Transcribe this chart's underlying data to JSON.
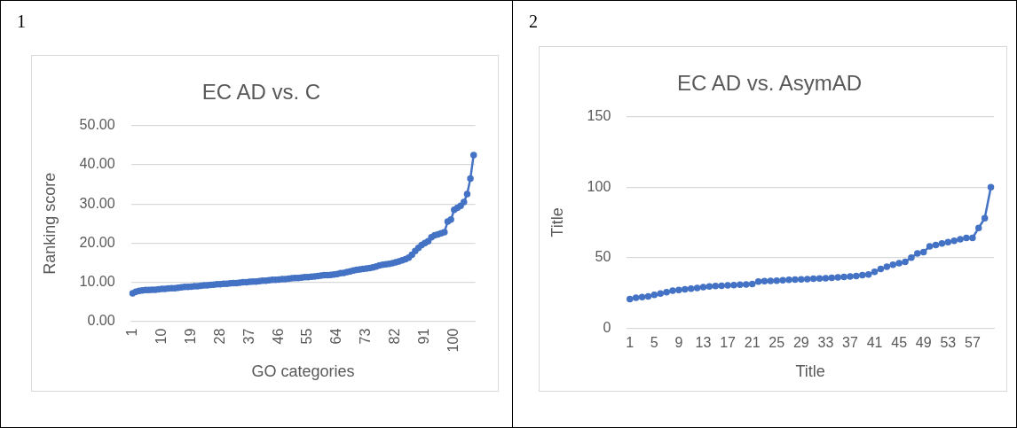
{
  "chart_data": [
    {
      "type": "line",
      "title": "EC AD vs. C",
      "xlabel": "GO categories",
      "ylabel": "Ranking score",
      "annotations": [
        "1"
      ],
      "categories": [
        "1",
        null,
        null,
        null,
        null,
        null,
        null,
        null,
        null,
        "10",
        null,
        null,
        null,
        null,
        null,
        null,
        null,
        null,
        "19",
        null,
        null,
        null,
        null,
        null,
        null,
        null,
        null,
        "28",
        null,
        null,
        null,
        null,
        null,
        null,
        null,
        null,
        "37",
        null,
        null,
        null,
        null,
        null,
        null,
        null,
        null,
        "46",
        null,
        null,
        null,
        null,
        null,
        null,
        null,
        null,
        "55",
        null,
        null,
        null,
        null,
        null,
        null,
        null,
        null,
        "64",
        null,
        null,
        null,
        null,
        null,
        null,
        null,
        null,
        "73",
        null,
        null,
        null,
        null,
        null,
        null,
        null,
        null,
        "82",
        null,
        null,
        null,
        null,
        null,
        null,
        null,
        null,
        "91",
        null,
        null,
        null,
        null,
        null,
        null,
        null,
        null,
        "100",
        null,
        null,
        null,
        null,
        null,
        null
      ],
      "series": [
        {
          "color": "#4472c4",
          "values": [
            7.2,
            7.6,
            7.8,
            7.9,
            8.0,
            8.0,
            8.1,
            8.1,
            8.2,
            8.3,
            8.3,
            8.4,
            8.5,
            8.5,
            8.6,
            8.7,
            8.8,
            8.8,
            8.9,
            9.0,
            9.0,
            9.1,
            9.2,
            9.2,
            9.3,
            9.4,
            9.5,
            9.5,
            9.6,
            9.6,
            9.7,
            9.8,
            9.8,
            9.9,
            10.0,
            10.0,
            10.1,
            10.2,
            10.2,
            10.3,
            10.4,
            10.4,
            10.5,
            10.6,
            10.6,
            10.7,
            10.8,
            10.8,
            10.9,
            11.0,
            11.1,
            11.1,
            11.2,
            11.3,
            11.3,
            11.4,
            11.5,
            11.6,
            11.7,
            11.8,
            11.8,
            11.9,
            12.0,
            12.1,
            12.3,
            12.4,
            12.6,
            12.8,
            13.0,
            13.2,
            13.3,
            13.4,
            13.5,
            13.6,
            13.8,
            14.0,
            14.3,
            14.5,
            14.6,
            14.7,
            14.9,
            15.1,
            15.3,
            15.6,
            15.9,
            16.3,
            17.0,
            18.0,
            18.8,
            19.5,
            20.0,
            20.5,
            21.5,
            22.0,
            22.2,
            22.5,
            22.8,
            25.5,
            26.0,
            28.5,
            29.0,
            29.5,
            30.5,
            32.5,
            36.5,
            42.5
          ]
        }
      ],
      "ylim": [
        0,
        50
      ],
      "yticks": [
        {
          "value": 0,
          "label": "0.00"
        },
        {
          "value": 10,
          "label": "10.00"
        },
        {
          "value": 20,
          "label": "20.00"
        },
        {
          "value": 30,
          "label": "30.00"
        },
        {
          "value": 40,
          "label": "40.00"
        },
        {
          "value": 50,
          "label": "50.00"
        }
      ],
      "grid": "y",
      "marker": "circle"
    },
    {
      "type": "line",
      "title": "EC AD vs. AsymAD",
      "xlabel": "Title",
      "ylabel": "Title",
      "annotations": [
        "2"
      ],
      "categories": [
        "1",
        null,
        null,
        null,
        "5",
        null,
        null,
        null,
        "9",
        null,
        null,
        null,
        "13",
        null,
        null,
        null,
        "17",
        null,
        null,
        null,
        "21",
        null,
        null,
        null,
        "25",
        null,
        null,
        null,
        "29",
        null,
        null,
        null,
        "33",
        null,
        null,
        null,
        "37",
        null,
        null,
        null,
        "41",
        null,
        null,
        null,
        "45",
        null,
        null,
        null,
        "49",
        null,
        null,
        null,
        "53",
        null,
        null,
        null,
        "57",
        null,
        null,
        null
      ],
      "series": [
        {
          "color": "#4472c4",
          "values": [
            20.5,
            21.5,
            22,
            22.5,
            23.5,
            24.5,
            25.5,
            26.5,
            27,
            27.5,
            28,
            28.5,
            29,
            29.5,
            29.8,
            30,
            30.3,
            30.5,
            30.8,
            31,
            31.2,
            33,
            33.3,
            33.5,
            33.7,
            34,
            34.2,
            34.4,
            34.6,
            34.8,
            35,
            35.2,
            35.4,
            35.6,
            36,
            36.3,
            36.6,
            37,
            37.5,
            38,
            40,
            42,
            43.5,
            45,
            46,
            47,
            50,
            53,
            54,
            58,
            59,
            60,
            61,
            62,
            63,
            64,
            64,
            71,
            78,
            100
          ]
        }
      ],
      "ylim": [
        0,
        150
      ],
      "yticks": [
        0,
        50,
        100,
        150
      ],
      "grid": "y",
      "marker": "circle"
    }
  ]
}
